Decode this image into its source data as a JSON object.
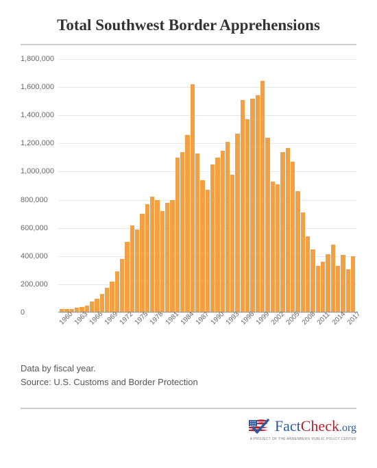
{
  "chart": {
    "type": "bar",
    "title": "Total Southwest Border Apprehensions",
    "title_fontsize": 23,
    "title_color": "#333333",
    "bar_color": "#f2a043",
    "background_color": "#ffffff",
    "grid_color": "#e5e5e5",
    "axis_color": "#999999",
    "label_color": "#666666",
    "label_fontsize": 11,
    "xlabel_fontsize": 10,
    "ylim": [
      0,
      1800000
    ],
    "ytick_step": 200000,
    "y_ticks": [
      {
        "v": 0,
        "label": "0"
      },
      {
        "v": 200000,
        "label": "200,000"
      },
      {
        "v": 400000,
        "label": "400,000"
      },
      {
        "v": 600000,
        "label": "600,000"
      },
      {
        "v": 800000,
        "label": "800,000"
      },
      {
        "v": 1000000,
        "label": "1,000,000"
      },
      {
        "v": 1200000,
        "label": "1,200,000"
      },
      {
        "v": 1400000,
        "label": "1,400,000"
      },
      {
        "v": 1600000,
        "label": "1,600,000"
      },
      {
        "v": 1800000,
        "label": "1,800,000"
      }
    ],
    "x_tick_years": [
      1960,
      1963,
      1966,
      1969,
      1972,
      1975,
      1978,
      1981,
      1984,
      1987,
      1990,
      1993,
      1996,
      1999,
      2002,
      2005,
      2008,
      2011,
      2014,
      2017
    ],
    "years": [
      1960,
      1961,
      1962,
      1963,
      1964,
      1965,
      1966,
      1967,
      1968,
      1969,
      1970,
      1971,
      1972,
      1973,
      1974,
      1975,
      1976,
      1977,
      1978,
      1979,
      1980,
      1981,
      1982,
      1983,
      1984,
      1985,
      1986,
      1987,
      1988,
      1989,
      1990,
      1991,
      1992,
      1993,
      1994,
      1995,
      1996,
      1997,
      1998,
      1999,
      2000,
      2001,
      2002,
      2003,
      2004,
      2005,
      2006,
      2007,
      2008,
      2009,
      2010,
      2011,
      2012,
      2013,
      2014,
      2015,
      2016,
      2017,
      2018
    ],
    "values": [
      22000,
      24000,
      24000,
      32000,
      38000,
      48000,
      80000,
      95000,
      130000,
      175000,
      220000,
      290000,
      380000,
      500000,
      620000,
      590000,
      700000,
      770000,
      820000,
      800000,
      720000,
      780000,
      800000,
      1100000,
      1140000,
      1260000,
      1620000,
      1130000,
      940000,
      870000,
      1050000,
      1100000,
      1150000,
      1210000,
      980000,
      1270000,
      1510000,
      1370000,
      1520000,
      1540000,
      1645000,
      1240000,
      930000,
      910000,
      1140000,
      1170000,
      1070000,
      860000,
      710000,
      540000,
      450000,
      330000,
      360000,
      415000,
      480000,
      330000,
      410000,
      305000,
      400000
    ]
  },
  "footer": {
    "line1": "Data by fiscal year.",
    "line2": "Source: U.S. Customs and Border Protection",
    "fontsize": 13,
    "color": "#555555"
  },
  "logo": {
    "fact_text": "Fact",
    "check_text": "Check",
    "org_text": ".org",
    "subtitle": "A PROJECT OF THE ANNENBERG PUBLIC POLICY CENTER",
    "fact_color": "#2b5a9c",
    "check_color": "#b22234",
    "org_color": "#2b5a9c",
    "flag_red": "#b22234",
    "flag_blue": "#2b5a9c",
    "flag_white": "#ffffff"
  }
}
